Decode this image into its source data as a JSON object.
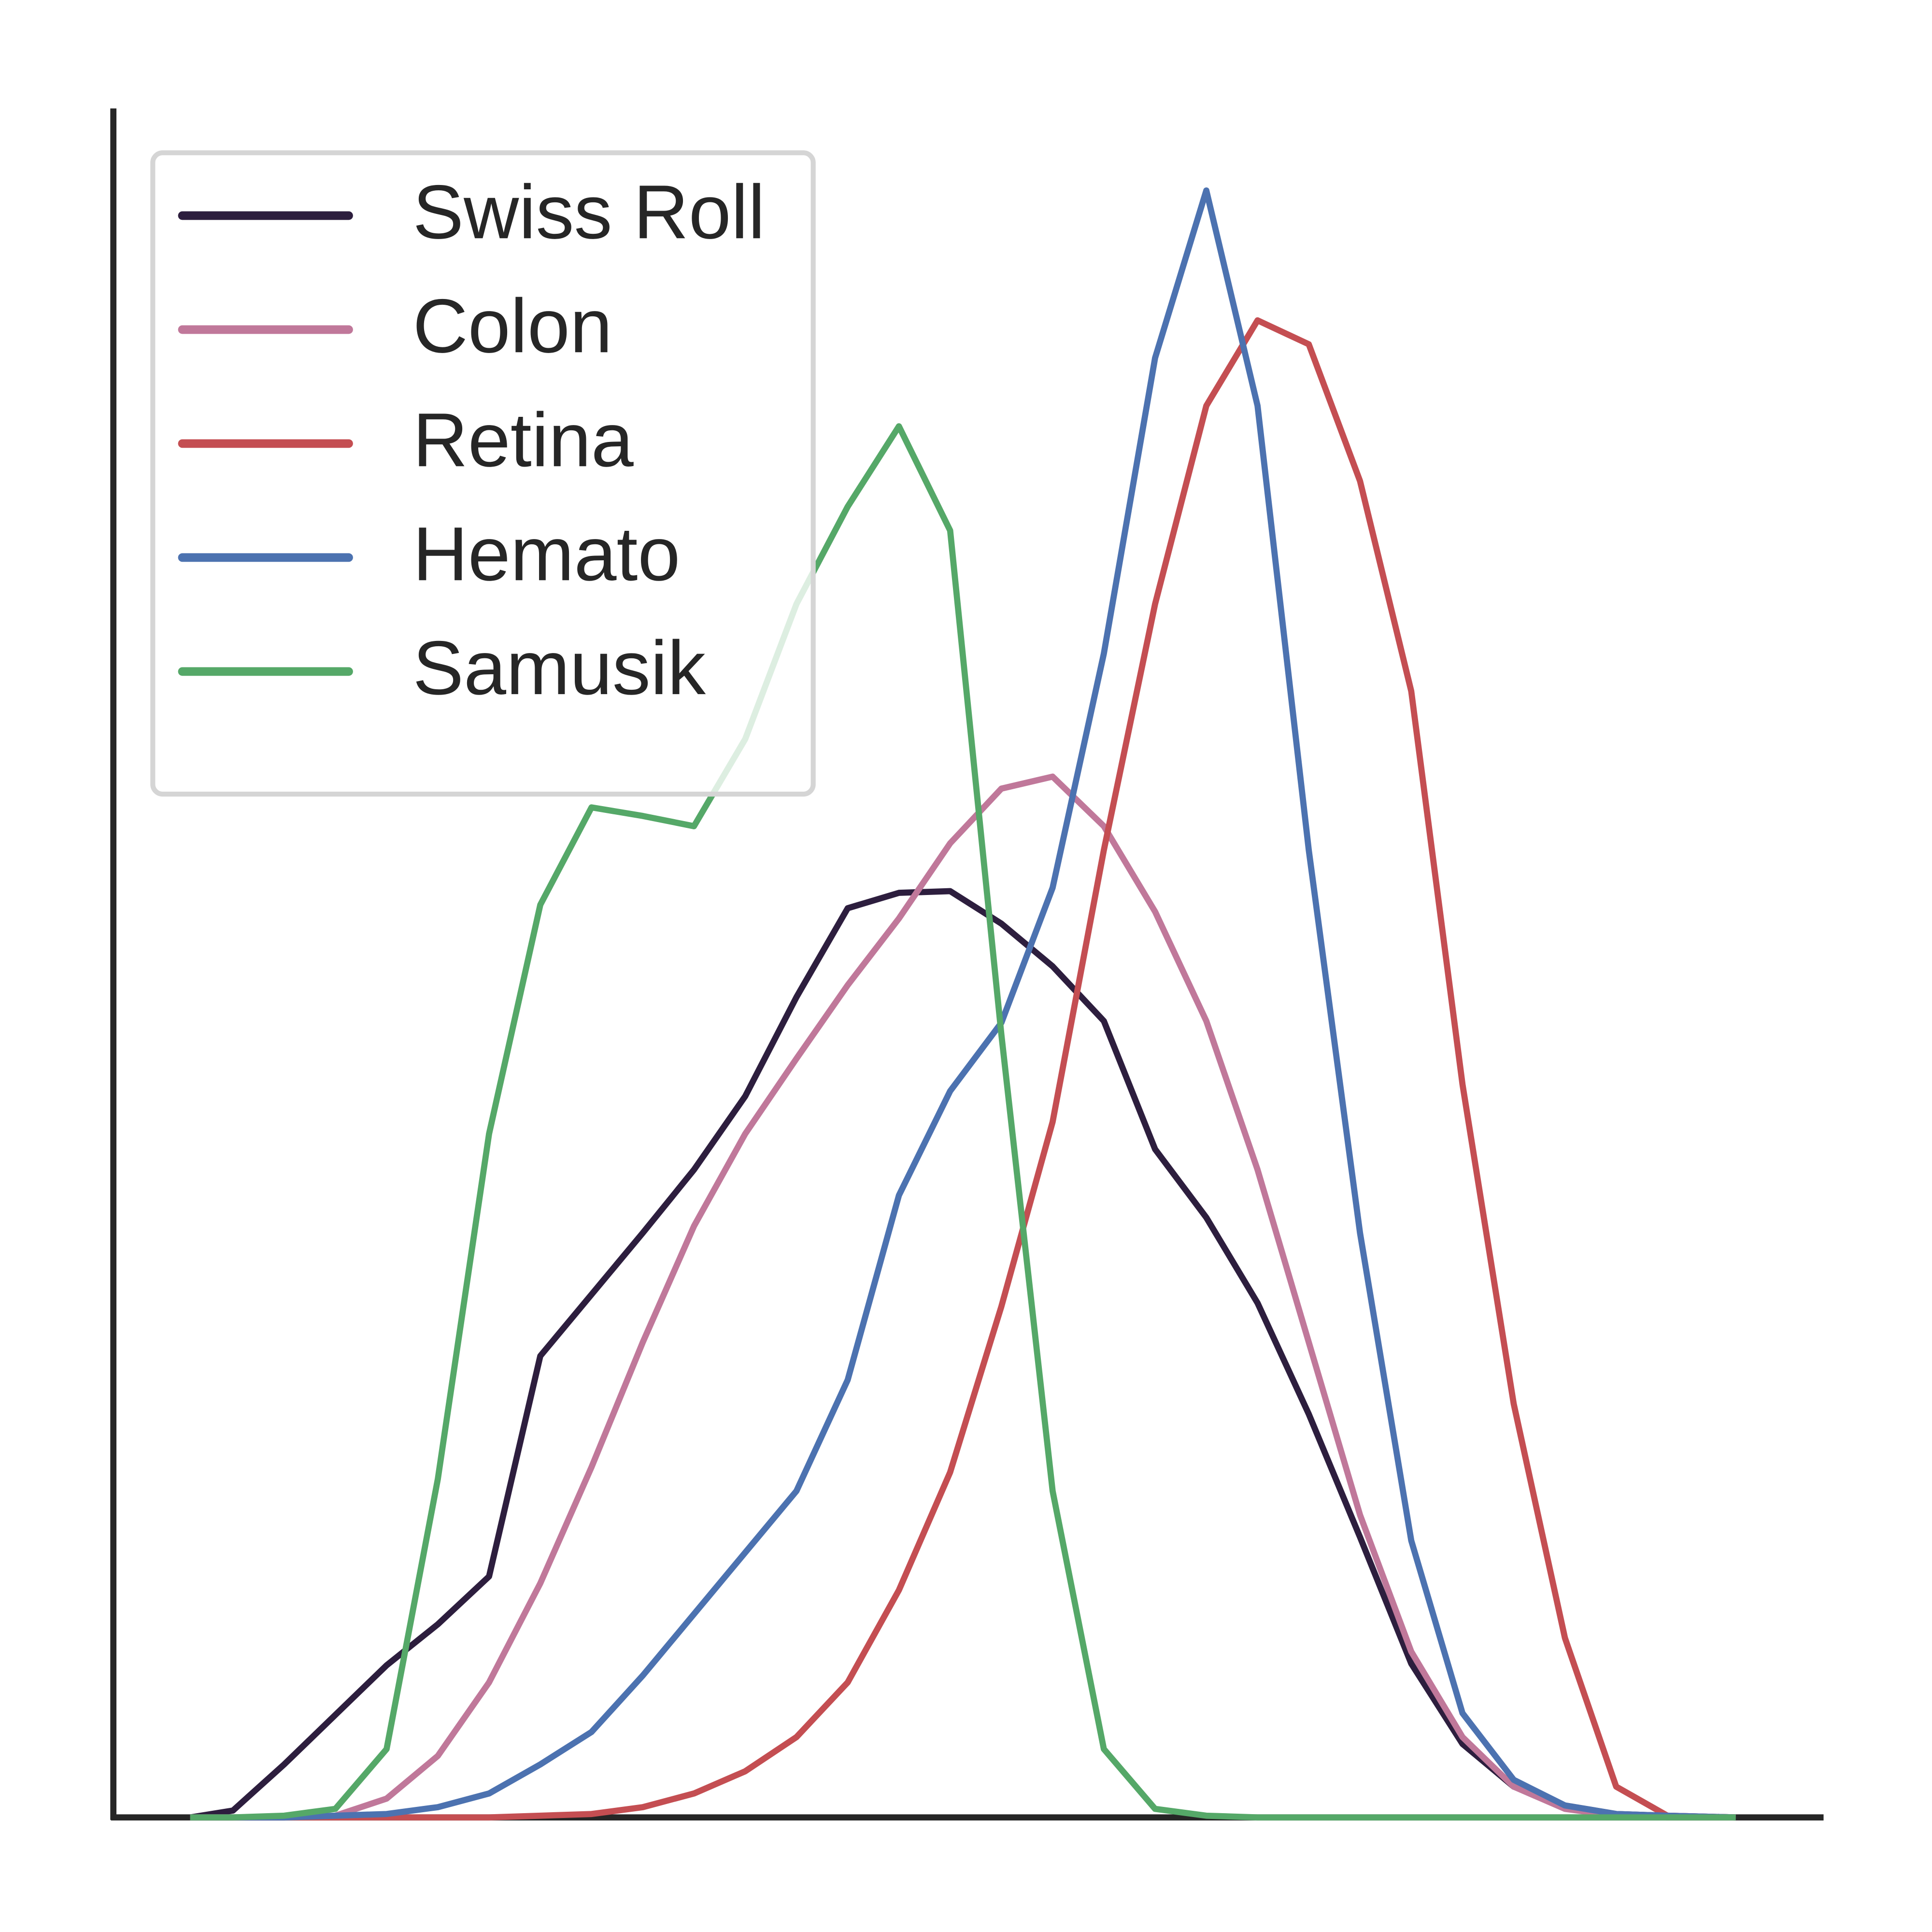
{
  "chart_data": {
    "type": "line",
    "x": [
      4.5,
      7,
      10,
      13,
      16,
      19,
      22,
      25,
      28,
      31,
      34,
      37,
      40,
      43,
      46,
      49,
      52,
      55,
      58,
      61,
      64,
      67,
      70,
      73,
      76,
      79,
      82,
      85,
      88,
      91,
      95
    ],
    "series": [
      {
        "name": "Swiss Roll",
        "color": "#2d1e3e",
        "values": [
          0,
          0.4,
          3.1,
          6.0,
          8.9,
          11.3,
          14.1,
          27.0,
          30.6,
          34.2,
          37.9,
          42.2,
          48.0,
          53.2,
          54.1,
          54.2,
          52.3,
          49.8,
          46.6,
          39.1,
          35.1,
          30.1,
          23.6,
          16.4,
          9.0,
          4.3,
          1.8,
          0.7,
          0.2,
          0.1,
          0
        ]
      },
      {
        "name": "Colon",
        "color": "#c0789a",
        "values": [
          0,
          0,
          0,
          0.1,
          1.1,
          3.6,
          7.9,
          13.7,
          20.5,
          27.8,
          34.6,
          40.0,
          44.4,
          48.7,
          52.6,
          57.0,
          60.2,
          60.9,
          58.0,
          53.0,
          46.6,
          37.9,
          27.8,
          17.7,
          9.7,
          4.7,
          1.8,
          0.5,
          0.1,
          0,
          0
        ]
      },
      {
        "name": "Retina",
        "color": "#c44e52",
        "values": [
          0,
          0,
          0,
          0,
          0,
          0,
          0,
          0.1,
          0.2,
          0.6,
          1.4,
          2.7,
          4.7,
          7.9,
          13.3,
          20.2,
          29.9,
          40.7,
          56.6,
          71.0,
          82.6,
          87.6,
          86.2,
          78.2,
          65.9,
          42.9,
          24.2,
          10.5,
          1.8,
          0.1,
          0
        ]
      },
      {
        "name": "Hemato",
        "color": "#4c72b0",
        "values": [
          0,
          0,
          0,
          0.1,
          0.2,
          0.6,
          1.4,
          3.1,
          5.0,
          8.3,
          11.9,
          15.5,
          19.1,
          25.6,
          36.4,
          42.5,
          46.5,
          54.4,
          68.1,
          85.4,
          95.2,
          82.6,
          56.6,
          34.2,
          16.2,
          6.1,
          2.2,
          0.7,
          0.2,
          0.1,
          0
        ]
      },
      {
        "name": "Samusik",
        "color": "#55a868",
        "values": [
          0,
          0,
          0.1,
          0.5,
          4.0,
          19.8,
          40.0,
          53.4,
          59.1,
          58.6,
          58.0,
          63.1,
          71.0,
          76.7,
          81.4,
          75.3,
          45.8,
          19.1,
          4.0,
          0.5,
          0.1,
          0,
          0,
          0,
          0,
          0,
          0,
          0,
          0,
          0,
          0
        ]
      }
    ],
    "xlim": [
      0,
      100
    ],
    "ylim": [
      0,
      100
    ],
    "legend": "upper left"
  }
}
